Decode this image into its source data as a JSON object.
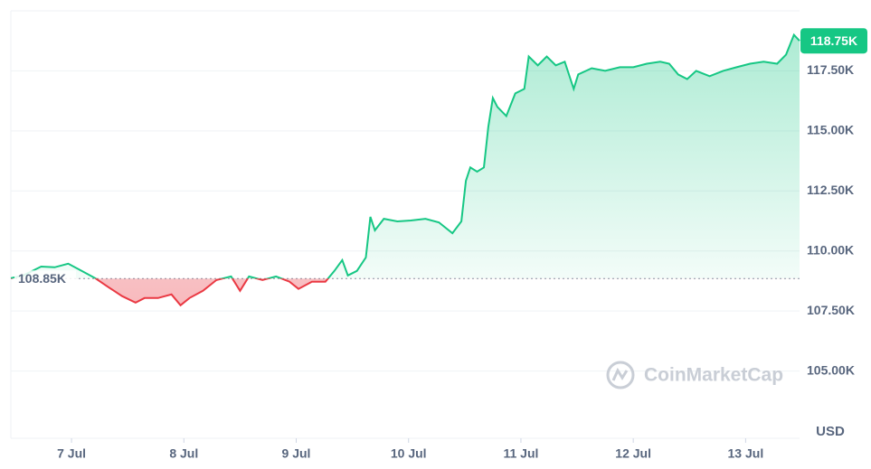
{
  "chart_data": {
    "type": "line",
    "series": [
      {
        "name": "BTC/USD",
        "color": "#16c784",
        "below_color": "#ea3943",
        "x": [
          -0.54,
          -0.43,
          -0.27,
          -0.15,
          -0.03,
          0.09,
          0.21,
          0.33,
          0.45,
          0.57,
          0.65,
          0.77,
          0.89,
          0.97,
          1.05,
          1.17,
          1.29,
          1.42,
          1.5,
          1.58,
          1.7,
          1.82,
          1.94,
          2.02,
          2.14,
          2.26,
          2.34,
          2.41,
          2.46,
          2.54,
          2.62,
          2.66,
          2.7,
          2.78,
          2.9,
          3.02,
          3.15,
          3.27,
          3.39,
          3.47,
          3.51,
          3.55,
          3.61,
          3.67,
          3.71,
          3.75,
          3.79,
          3.87,
          3.95,
          4.03,
          4.07,
          4.15,
          4.23,
          4.31,
          4.39,
          4.47,
          4.51,
          4.63,
          4.75,
          4.88,
          5,
          5.12,
          5.24,
          5.32,
          5.4,
          5.48,
          5.56,
          5.68,
          5.8,
          5.92,
          6.04,
          6.16,
          6.28,
          6.36,
          6.43,
          6.48
        ],
        "values": [
          108870,
          108980,
          109350,
          109320,
          109470,
          109170,
          108870,
          108490,
          108120,
          107850,
          108040,
          108040,
          108190,
          107740,
          108040,
          108340,
          108790,
          108940,
          108340,
          108940,
          108790,
          108940,
          108720,
          108420,
          108720,
          108720,
          109170,
          109620,
          108980,
          109170,
          109730,
          111420,
          110860,
          111340,
          111230,
          111270,
          111340,
          111190,
          110740,
          111230,
          112920,
          113480,
          113300,
          113480,
          115170,
          116370,
          116000,
          115620,
          116560,
          116750,
          118100,
          117730,
          118100,
          117730,
          117880,
          116750,
          117350,
          117610,
          117500,
          117650,
          117650,
          117800,
          117880,
          117800,
          117350,
          117160,
          117500,
          117280,
          117500,
          117650,
          117800,
          117880,
          117800,
          118180,
          119000,
          118750
        ]
      }
    ],
    "baseline": {
      "value": 108850,
      "label": "108.85K"
    },
    "last_price_label": "118.75K",
    "xlim": [
      -0.54,
      6.48
    ],
    "xticks": [
      {
        "value": 0,
        "label": "7 Jul"
      },
      {
        "value": 1,
        "label": "8 Jul"
      },
      {
        "value": 2,
        "label": "9 Jul"
      },
      {
        "value": 3,
        "label": "10 Jul"
      },
      {
        "value": 4,
        "label": "11 Jul"
      },
      {
        "value": 5,
        "label": "12 Jul"
      },
      {
        "value": 6,
        "label": "13 Jul"
      }
    ],
    "ylim": [
      102200,
      120000
    ],
    "yticks": [
      {
        "value": 105000,
        "label": "105.00K"
      },
      {
        "value": 107500,
        "label": "107.50K"
      },
      {
        "value": 110000,
        "label": "110.00K"
      },
      {
        "value": 112500,
        "label": "112.50K"
      },
      {
        "value": 115000,
        "label": "115.00K"
      },
      {
        "value": 117500,
        "label": "117.50K"
      }
    ],
    "y_unit": "USD",
    "watermark": "CoinMarketCap",
    "grid": true
  }
}
